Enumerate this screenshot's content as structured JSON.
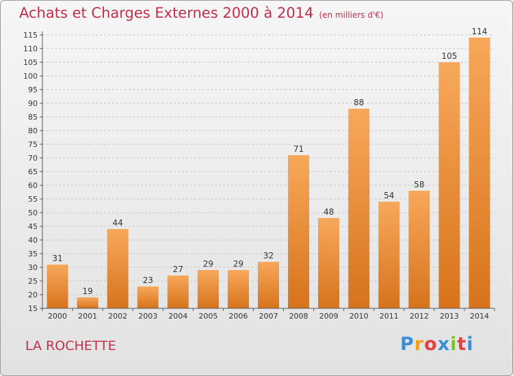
{
  "title": "Achats et Charges Externes 2000 à 2014",
  "subtitle": "(en milliers d'€)",
  "commune": "LA ROCHETTE",
  "logo": {
    "letters": [
      "P",
      "r",
      "o",
      "x",
      "i",
      "t",
      "i"
    ],
    "colors": [
      "#3a8fd8",
      "#f0a020",
      "#e34040",
      "#3a8fd8",
      "#7bbf2a",
      "#e34040",
      "#3a8fd8"
    ]
  },
  "colors": {
    "bar_light": "#f7a85a",
    "bar_dark": "#d7731c",
    "title": "#c0304a"
  },
  "chart_data": {
    "type": "bar",
    "categories": [
      "2000",
      "2001",
      "2002",
      "2003",
      "2004",
      "2005",
      "2006",
      "2007",
      "2008",
      "2009",
      "2010",
      "2011",
      "2012",
      "2013",
      "2014"
    ],
    "values": [
      31,
      19,
      44,
      23,
      27,
      29,
      29,
      32,
      71,
      48,
      88,
      54,
      58,
      105,
      114
    ],
    "data_labels": [
      "31",
      "19",
      "44",
      "23",
      "27",
      "29",
      "29",
      "32",
      "71",
      "48",
      "88",
      "54",
      "58",
      "105",
      "114"
    ],
    "ylim": [
      15,
      115
    ],
    "ytick_labels": [
      "15",
      "20",
      "25",
      "30",
      "35",
      "40",
      "45",
      "50",
      "55",
      "60",
      "65",
      "70",
      "75",
      "80",
      "85",
      "90",
      "95",
      "100",
      "105",
      "110",
      "115"
    ],
    "grid": "horizontal dashed",
    "legend": "none"
  }
}
